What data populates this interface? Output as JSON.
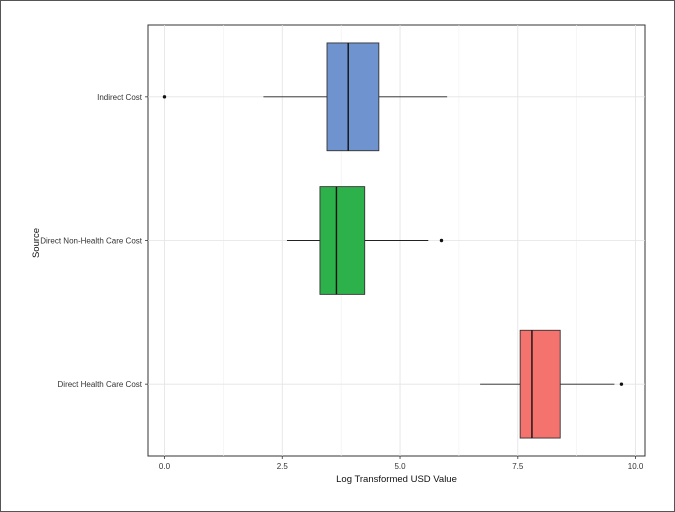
{
  "chart_data": {
    "type": "boxplot",
    "orientation": "horizontal",
    "title": "",
    "xlabel": "Log Transformed USD Value",
    "ylabel": "Source",
    "xlim": [
      -0.35,
      10.2
    ],
    "xticks": [
      0.0,
      2.5,
      5.0,
      7.5,
      10.0
    ],
    "xtick_labels": [
      "0.0",
      "2.5",
      "5.0",
      "7.5",
      "10.0"
    ],
    "grid": true,
    "categories": [
      "Indirect Cost",
      "Direct Non-Health Care Cost",
      "Direct Health Care Cost"
    ],
    "boxes": [
      {
        "category": "Indirect Cost",
        "color": "#6f93cf",
        "whisker_low": 2.1,
        "q1": 3.45,
        "median": 3.9,
        "q3": 4.55,
        "whisker_high": 6.0,
        "outliers": [
          0.0
        ]
      },
      {
        "category": "Direct Non-Health Care Cost",
        "color": "#2db14a",
        "whisker_low": 2.6,
        "q1": 3.3,
        "median": 3.65,
        "q3": 4.25,
        "whisker_high": 5.6,
        "outliers": [
          5.88
        ]
      },
      {
        "category": "Direct Health Care Cost",
        "color": "#f4736e",
        "whisker_low": 6.7,
        "q1": 7.55,
        "median": 7.8,
        "q3": 8.4,
        "whisker_high": 9.55,
        "outliers": [
          9.7
        ]
      }
    ]
  }
}
